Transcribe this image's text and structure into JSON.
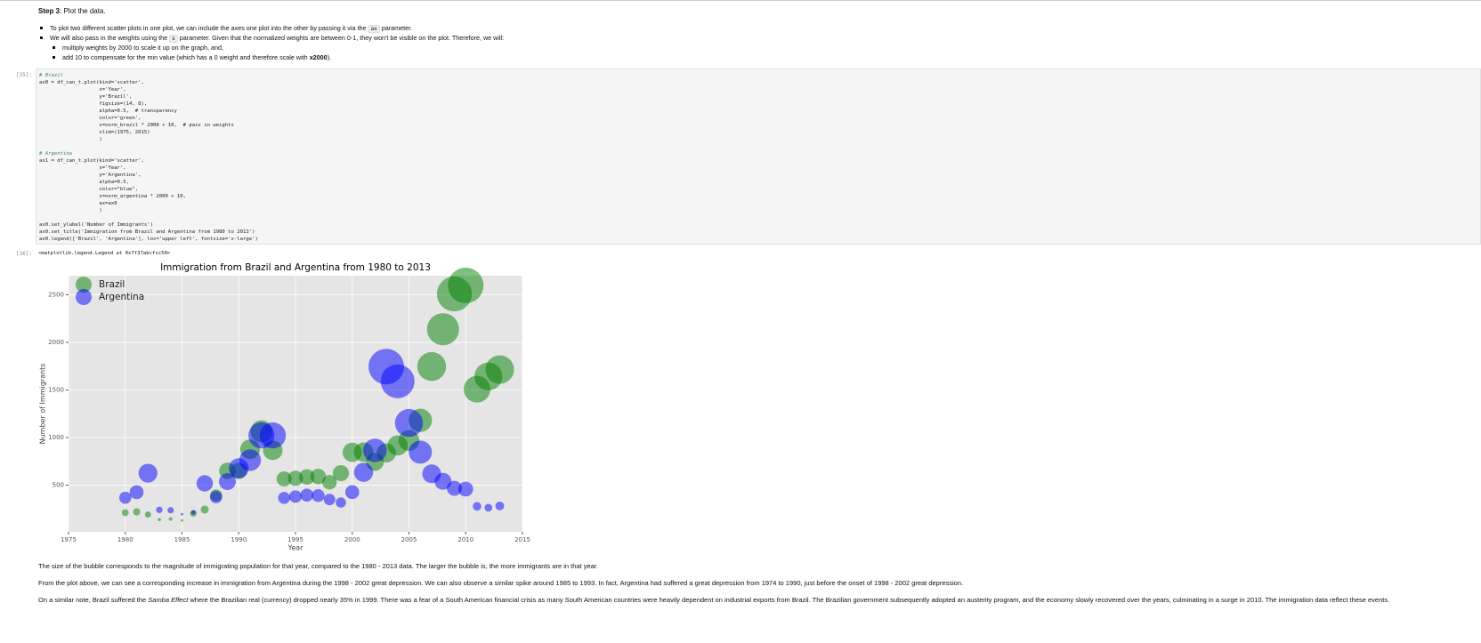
{
  "markdown_top": {
    "heading": [
      {
        "text": "Step 3",
        "style": "bold"
      },
      {
        "text": ": Plot the data."
      }
    ],
    "bullets": [
      [
        {
          "text": "To plot two different scatter plots in one plot, we can include the axes one plot into the other by passing it via the "
        },
        {
          "text": "ax",
          "style": "code"
        },
        {
          "text": " parameter."
        }
      ],
      [
        {
          "text": "We will also pass in the weights using the "
        },
        {
          "text": "s",
          "style": "code"
        },
        {
          "text": " parameter. Given that the normalized weights are between 0-1, they won't be visible on the plot. Therefore, we will:"
        }
      ]
    ],
    "sub_bullets": [
      [
        {
          "text": "multiply weights by 2000 to scale it up on the graph, and,"
        }
      ],
      [
        {
          "text": "add 10 to compensate for the min value (which has a 0 weight and therefore scale with "
        },
        {
          "text": "x2000",
          "style": "bold"
        },
        {
          "text": ")."
        }
      ]
    ]
  },
  "code_cell": {
    "prompt": "[35]:",
    "blocks": [
      [
        "# Brazil",
        "ax0 = df_can_t.plot(kind='scatter',",
        "                    x='Year',",
        "                    y='Brazil',",
        "                    figsize=(14, 8),",
        "                    alpha=0.5,  # transparency",
        "                    color='green',",
        "                    s=norm_brazil * 2000 + 10,  # pass in weights ",
        "                    xlim=(1975, 2015)",
        "                    )"
      ],
      [
        "# Argentina",
        "ax1 = df_can_t.plot(kind='scatter',",
        "                    x='Year',",
        "                    y='Argentina',",
        "                    alpha=0.5,",
        "                    color=\"blue\",",
        "                    s=norm_argentina * 2000 + 10,",
        "                    ax=ax0",
        "                    )"
      ],
      [
        "ax0.set_ylabel('Number of Immigrants')",
        "ax0.set_title('Immigration from Brazil and Argentina from 1980 to 2013')",
        "ax0.legend(['Brazil', 'Argentina'], loc='upper left', fontsize='x-large')"
      ]
    ]
  },
  "output": {
    "prompt": "[36]:",
    "text": "<matplotlib.legend.Legend at 0x7f37abcfcc50>"
  },
  "chart_data": {
    "type": "bubble",
    "title": "Immigration from Brazil and Argentina from 1980 to 2013",
    "x_label": "Year",
    "y_label": "Number of Immigrants",
    "x": [
      1980,
      1981,
      1982,
      1983,
      1984,
      1985,
      1986,
      1987,
      1988,
      1989,
      1990,
      1991,
      1992,
      1993,
      1994,
      1995,
      1996,
      1997,
      1998,
      1999,
      2000,
      2001,
      2002,
      2003,
      2004,
      2005,
      2006,
      2007,
      2008,
      2009,
      2010,
      2011,
      2012,
      2013
    ],
    "series": [
      {
        "name": "Brazil",
        "color": "#008000",
        "values": [
          211,
          220,
          192,
          139,
          145,
          130,
          205,
          244,
          394,
          650,
          650,
          877,
          1066,
          866,
          566,
          572,
          586,
          591,
          531,
          626,
          845,
          847,
          745,
          839,
          917,
          969,
          1181,
          1746,
          2138,
          2509,
          2598,
          1508,
          1642,
          1714
        ]
      },
      {
        "name": "Argentina",
        "color": "#0000ff",
        "values": [
          368,
          426,
          626,
          241,
          237,
          196,
          213,
          519,
          374,
          538,
          678,
          763,
          1023,
          1022,
          366,
          380,
          396,
          391,
          349,
          318,
          427,
          635,
          865,
          1745,
          1591,
          1153,
          847,
          620,
          540,
          467,
          459,
          278,
          263,
          282
        ]
      }
    ],
    "alpha": 0.5,
    "xlim": [
      1975,
      2015
    ],
    "xticks": [
      1975,
      1980,
      1985,
      1990,
      1995,
      2000,
      2005,
      2010,
      2015
    ],
    "ylim": [
      10,
      2700
    ],
    "yticks": [
      500,
      1000,
      1500,
      2000,
      2500
    ],
    "grid": true,
    "legend": "upper-left"
  },
  "markdown_bottom": {
    "paragraphs": [
      [
        {
          "text": "The size of the bubble corresponds to the magnitude of immigrating population for that year, compared to the 1980 - 2013 data. The larger the bubble is, the more immigrants are in that year."
        }
      ],
      [
        {
          "text": "From the plot above, we can see a corresponding increase in immigration from Argentina during the 1998 - 2002 great depression. We can also observe a similar spike around 1985 to 1993. In fact, Argentina had suffered a great depression from 1974 to 1990, just before the onset of 1998 - 2002 great depression."
        }
      ],
      [
        {
          "text": "On a similar note, Brazil suffered the "
        },
        {
          "text": "Samba Effect",
          "style": "italic"
        },
        {
          "text": " where the Brazilian real (currency) dropped nearly 35% in 1999. There was a fear of a South American financial crisis as many South American countries were heavily dependent on industrial exports from Brazil. The Brazilian government subsequently adopted an austerity program, and the economy slowly recovered over the years, culminating in a surge in 2010. The immigration data reflect these events."
        }
      ]
    ]
  }
}
